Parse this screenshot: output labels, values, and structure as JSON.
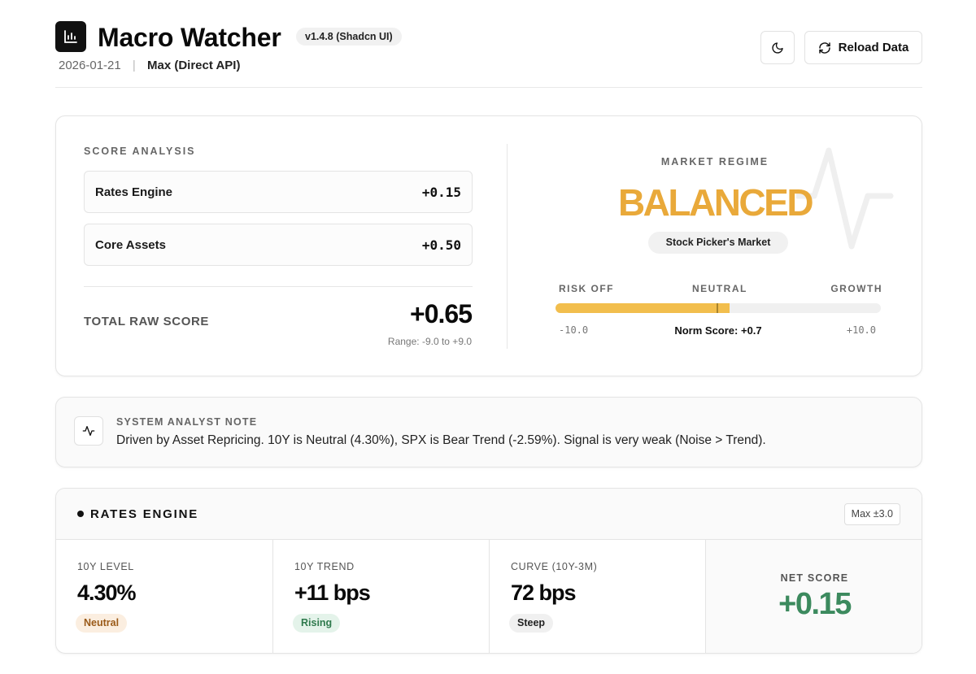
{
  "header": {
    "logo_icon": "bar-chart-icon",
    "title": "Macro Watcher",
    "version": "v1.4.8 (Shadcn UI)",
    "date": "2026-01-21",
    "separator": "|",
    "source": "Max (Direct API)",
    "theme_icon": "moon-icon",
    "reload_icon": "refresh-icon",
    "reload_label": "Reload Data"
  },
  "score_analysis": {
    "label": "SCORE ANALYSIS",
    "rows": [
      {
        "name": "Rates Engine",
        "value": "+0.15"
      },
      {
        "name": "Core Assets",
        "value": "+0.50"
      }
    ],
    "total_label": "TOTAL RAW SCORE",
    "total_value": "+0.65",
    "range": "Range: -9.0 to +9.0"
  },
  "market_regime": {
    "label": "MARKET REGIME",
    "regime": "BALANCED",
    "subtitle": "Stock Picker's Market",
    "scale": {
      "left": "RISK OFF",
      "center": "NEUTRAL",
      "right": "GROWTH"
    },
    "min": "-10.0",
    "max": "+10.0",
    "norm_score_text": "Norm Score: +0.7",
    "norm_score": 0.7,
    "scale_range": [
      -10,
      10
    ],
    "accent_color": "#e9a93a",
    "bar_color": "#f2be4d"
  },
  "analyst_note": {
    "icon": "activity-icon",
    "label": "SYSTEM ANALYST NOTE",
    "text": "Driven by Asset Repricing. 10Y is Neutral (4.30%), SPX is Bear Trend (-2.59%). Signal is very weak (Noise > Trend)."
  },
  "rates_engine": {
    "title": "RATES ENGINE",
    "max_badge": "Max ±3.0",
    "metrics": [
      {
        "label": "10Y LEVEL",
        "value": "4.30%",
        "tag": "Neutral"
      },
      {
        "label": "10Y TREND",
        "value": "+11 bps",
        "tag": "Rising"
      },
      {
        "label": "CURVE (10Y-3M)",
        "value": "72 bps",
        "tag": "Steep"
      }
    ],
    "net_label": "NET SCORE",
    "net_value": "+0.15",
    "net_color": "#3c8a5e"
  }
}
